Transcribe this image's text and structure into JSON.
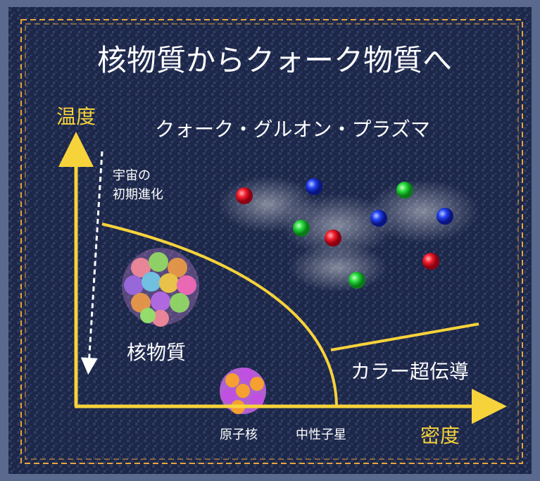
{
  "title": "核物質からクォーク物質へ",
  "axes": {
    "y_label": "温度",
    "x_label": "密度"
  },
  "regions": {
    "qgp": "クォーク・グルオン・プラズマ",
    "nuclear_matter": "核物質",
    "color_superconductivity": "カラー超伝導"
  },
  "annotations": {
    "early_universe": [
      "宇宙の",
      "初期進化"
    ],
    "nucleus": "原子核",
    "neutron_star": "中性子星"
  }
}
